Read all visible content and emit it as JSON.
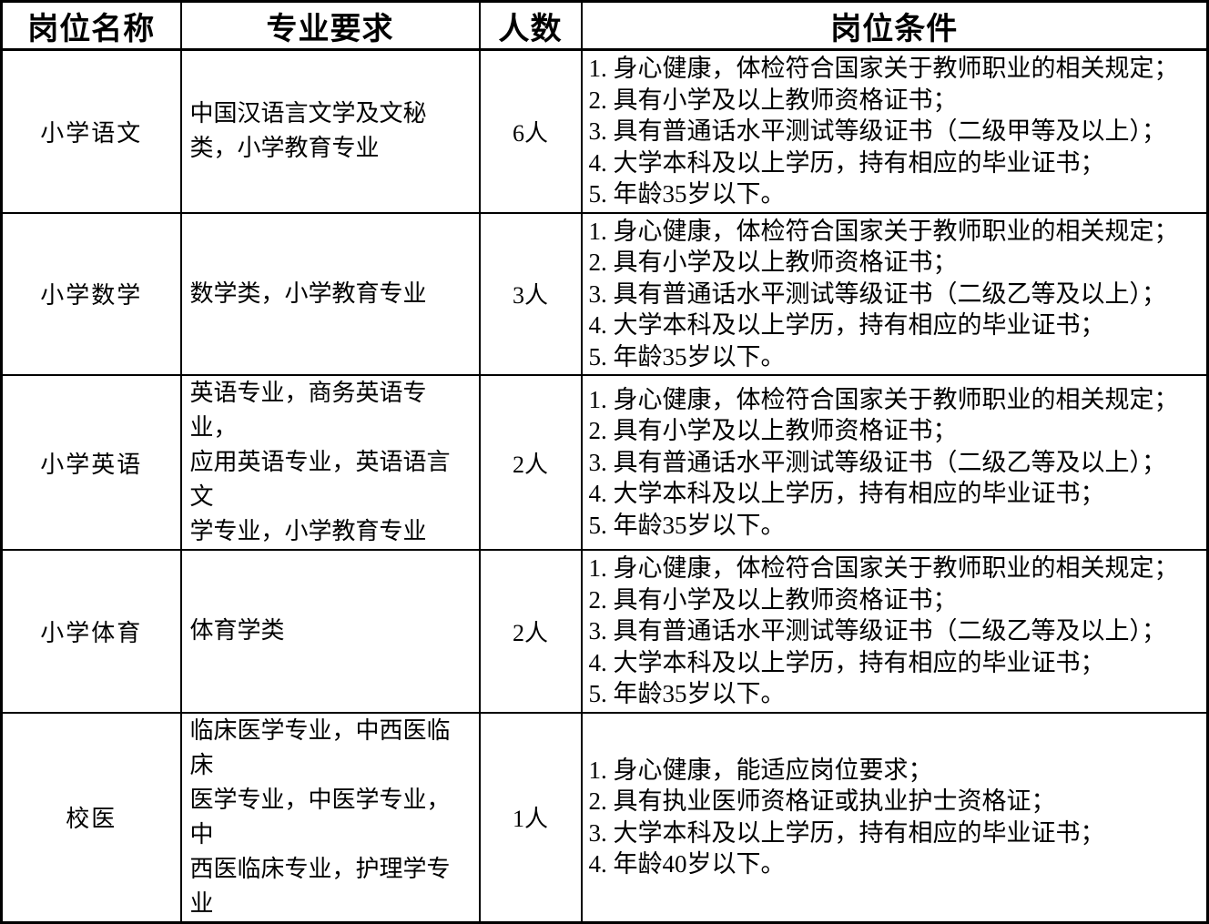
{
  "page": {
    "background_color": "#ffffff",
    "border_color": "#000000",
    "text_color": "#000000"
  },
  "table": {
    "headers": {
      "position": "岗位名称",
      "majors": "专业要求",
      "count": "人数",
      "conditions": "岗位条件"
    },
    "rows": [
      {
        "position": "小学语文",
        "majors": "中国汉语言文学及文秘\n类，小学教育专业",
        "count": "6人",
        "conditions": [
          "1. 身心健康，体检符合国家关于教师职业的相关规定；",
          "2. 具有小学及以上教师资格证书；",
          "3. 具有普通话水平测试等级证书（二级甲等及以上）；",
          "4. 大学本科及以上学历，持有相应的毕业证书；",
          "5. 年龄35岁以下。"
        ]
      },
      {
        "position": "小学数学",
        "majors": "数学类，小学教育专业",
        "count": "3人",
        "conditions": [
          "1. 身心健康，体检符合国家关于教师职业的相关规定；",
          "2. 具有小学及以上教师资格证书；",
          "3. 具有普通话水平测试等级证书（二级乙等及以上）；",
          "4. 大学本科及以上学历，持有相应的毕业证书；",
          "5. 年龄35岁以下。"
        ]
      },
      {
        "position": "小学英语",
        "majors": "英语专业，商务英语专业，\n应用英语专业，英语语言文\n学专业，小学教育专业",
        "count": "2人",
        "conditions": [
          "1. 身心健康，体检符合国家关于教师职业的相关规定；",
          "2. 具有小学及以上教师资格证书；",
          "3. 具有普通话水平测试等级证书（二级乙等及以上）；",
          "4. 大学本科及以上学历，持有相应的毕业证书；",
          "5. 年龄35岁以下。"
        ]
      },
      {
        "position": "小学体育",
        "majors": "体育学类",
        "count": "2人",
        "conditions": [
          "1. 身心健康，体检符合国家关于教师职业的相关规定；",
          "2. 具有小学及以上教师资格证书；",
          "3. 具有普通话水平测试等级证书（二级乙等及以上）；",
          "4. 大学本科及以上学历，持有相应的毕业证书；",
          "5. 年龄35岁以下。"
        ]
      },
      {
        "position": "校医",
        "majors": "临床医学专业，中西医临床\n医学专业，中医学专业，中\n西医临床专业，护理学专业",
        "count": "1人",
        "conditions": [
          "1. 身心健康，能适应岗位要求；",
          "2. 具有执业医师资格证或执业护士资格证；",
          "3. 大学本科及以上学历，持有相应的毕业证书；",
          "4. 年龄40岁以下。"
        ]
      }
    ]
  }
}
